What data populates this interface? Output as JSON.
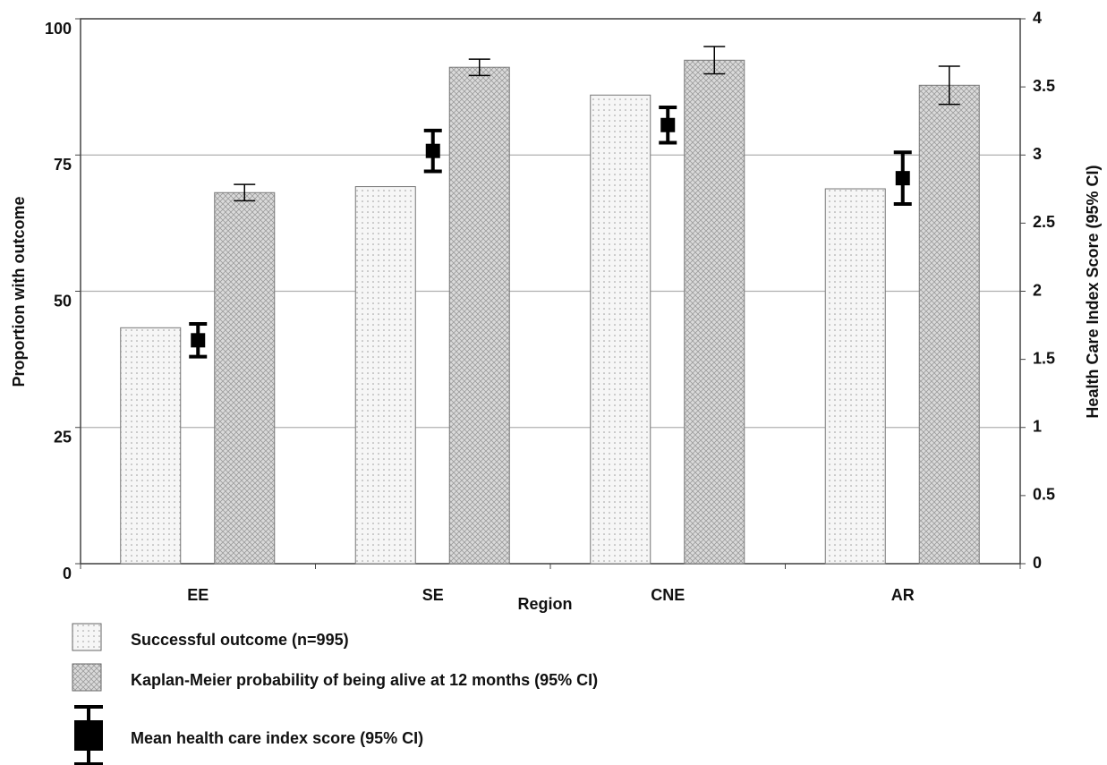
{
  "chart_data": {
    "type": "bar",
    "x_label": "Region",
    "y_label": "Proportion with outcome",
    "y2_label": "Health Care Index Score (95% CI)",
    "categories": [
      "EE",
      "SE",
      "CNE",
      "AR"
    ],
    "ylim": [
      0,
      100
    ],
    "yticks": [
      0,
      25,
      50,
      75,
      100
    ],
    "y2lim": [
      0,
      4
    ],
    "y2ticks": [
      0,
      0.5,
      1,
      1.5,
      2,
      2.5,
      3,
      3.5,
      4
    ],
    "grid": true,
    "series": [
      {
        "name": "Successful outcome (n=995)",
        "type": "bar",
        "color": "#f3f3f3",
        "values": [
          43.3,
          69.2,
          86,
          68.8
        ]
      },
      {
        "name": "Kaplan-Meier probability of being alive at 12 months (95% CI)",
        "type": "bar",
        "color": "#cfcfcf",
        "values": [
          68.1,
          91.1,
          92.4,
          87.8
        ],
        "errors": [
          1.5,
          1.5,
          2.5,
          3.5
        ]
      },
      {
        "name": "Mean health care index score (95% CI)",
        "type": "point",
        "axis": "y2",
        "color": "#000000",
        "values": [
          1.64,
          3.03,
          3.22,
          2.83
        ],
        "errors": [
          0.12,
          0.15,
          0.13,
          0.19
        ]
      }
    ]
  }
}
